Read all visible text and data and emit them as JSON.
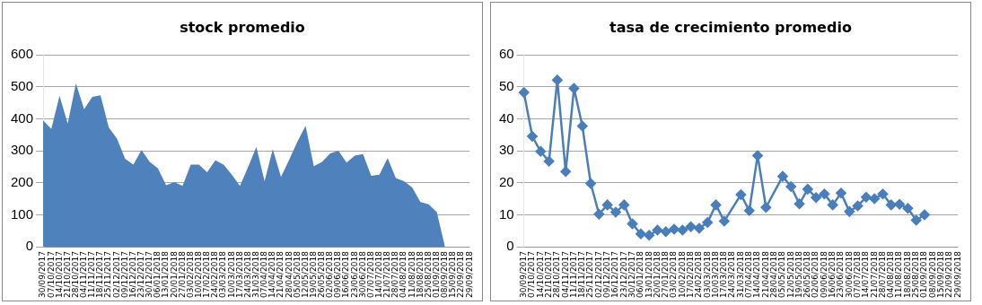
{
  "chart_data": [
    {
      "type": "area",
      "title": "stock promedio",
      "categories": [
        "30/09/2017",
        "07/10/2017",
        "14/10/2017",
        "21/10/2017",
        "28/10/2017",
        "04/11/2017",
        "11/11/2017",
        "18/11/2017",
        "25/11/2017",
        "02/12/2017",
        "09/12/2017",
        "16/12/2017",
        "23/12/2017",
        "30/12/2017",
        "06/01/2018",
        "13/01/2018",
        "20/01/2018",
        "27/01/2018",
        "03/02/2018",
        "10/02/2018",
        "17/02/2018",
        "24/02/2018",
        "03/03/2018",
        "10/03/2018",
        "17/03/2018",
        "24/03/2018",
        "31/03/2018",
        "07/04/2018",
        "14/04/2018",
        "21/04/2018",
        "28/04/2018",
        "05/05/2018",
        "12/05/2018",
        "19/05/2018",
        "26/05/2018",
        "02/06/2018",
        "09/06/2018",
        "16/06/2018",
        "23/06/2018",
        "30/06/2018",
        "07/07/2018",
        "14/07/2018",
        "21/07/2018",
        "28/07/2018",
        "04/08/2018",
        "11/08/2018",
        "18/08/2018",
        "25/08/2018",
        "01/09/2018",
        "08/09/2018",
        "15/09/2018",
        "22/09/2018",
        "29/09/2018"
      ],
      "series": [
        {
          "color": "#4f81bd",
          "values": [
            395,
            368,
            472,
            385,
            510,
            430,
            468,
            473,
            373,
            338,
            275,
            257,
            302,
            265,
            245,
            192,
            202,
            190,
            257,
            257,
            233,
            270,
            257,
            225,
            190,
            250,
            312,
            205,
            305,
            218,
            272,
            328,
            378,
            252,
            265,
            292,
            300,
            263,
            285,
            290,
            222,
            225,
            277,
            215,
            205,
            185,
            140,
            133,
            108,
            0,
            null,
            null,
            null
          ]
        }
      ],
      "ylim": [
        0,
        600
      ],
      "yticks": [
        0,
        100,
        200,
        300,
        400,
        500,
        600
      ],
      "grid": "y",
      "legend": false
    },
    {
      "type": "line",
      "title": "tasa de crecimiento promedio",
      "categories": [
        "30/09/2017",
        "07/10/2017",
        "14/10/2017",
        "21/10/2017",
        "28/10/2017",
        "04/11/2017",
        "11/11/2017",
        "18/11/2017",
        "25/11/2017",
        "02/12/2017",
        "09/12/2017",
        "16/12/2017",
        "23/12/2017",
        "30/12/2017",
        "06/01/2018",
        "13/01/2018",
        "20/01/2018",
        "27/01/2018",
        "03/02/2018",
        "10/02/2018",
        "17/02/2018",
        "24/02/2018",
        "03/03/2018",
        "10/03/2018",
        "17/03/2018",
        "24/03/2018",
        "31/03/2018",
        "07/04/2018",
        "14/04/2018",
        "21/04/2018",
        "28/04/2018",
        "05/05/2018",
        "12/05/2018",
        "19/05/2018",
        "26/05/2018",
        "02/06/2018",
        "09/06/2018",
        "16/06/2018",
        "23/06/2018",
        "30/06/2018",
        "07/07/2018",
        "14/07/2018",
        "21/07/2018",
        "28/07/2018",
        "04/08/2018",
        "11/08/2018",
        "18/08/2018",
        "25/08/2018",
        "01/09/2018",
        "08/09/2018",
        "15/09/2018",
        "22/09/2018",
        "29/09/2018"
      ],
      "series": [
        {
          "color": "#4a7ebb",
          "values": [
            48.2,
            34.5,
            29.8,
            26.7,
            52.1,
            23.5,
            49.5,
            37.7,
            19.8,
            10.2,
            13.1,
            10.8,
            13.1,
            7.2,
            4.0,
            3.6,
            5.2,
            4.7,
            5.5,
            5.2,
            6.3,
            5.8,
            7.6,
            13.1,
            8.0,
            null,
            16.3,
            11.3,
            28.5,
            12.3,
            null,
            22.0,
            18.8,
            13.4,
            18.0,
            15.4,
            16.5,
            13.1,
            16.8,
            11.0,
            12.8,
            15.5,
            15.0,
            16.5,
            13.1,
            13.3,
            12.0,
            8.3,
            10.0,
            null,
            null,
            null,
            null
          ]
        }
      ],
      "ylim": [
        0,
        60
      ],
      "yticks": [
        0,
        10,
        20,
        30,
        40,
        50,
        60
      ],
      "grid": "y",
      "legend": false,
      "marker": "diamond",
      "line_style": "solid"
    }
  ]
}
